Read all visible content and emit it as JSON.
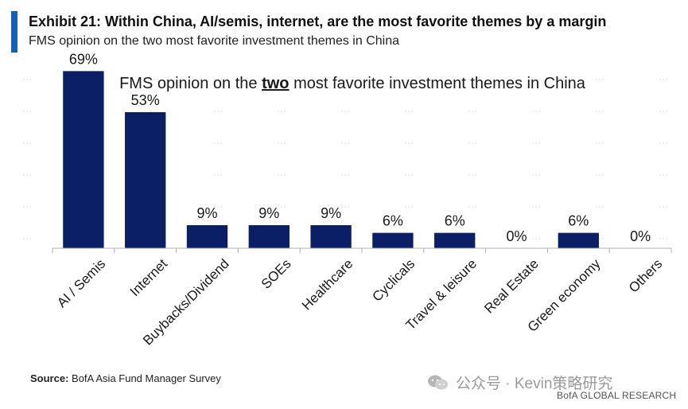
{
  "header": {
    "exhibit_title": "Exhibit 21: Within China, AI/semis, internet, are the most favorite themes by a margin",
    "exhibit_subtitle": "FMS opinion on the two most favorite investment themes in China",
    "accent_color": "#1560bd"
  },
  "chart_data": {
    "type": "bar",
    "title_prefix": "FMS opinion on the ",
    "title_emphasis": "two",
    "title_suffix": " most favorite investment themes in China",
    "categories": [
      "AI / Semis",
      "Internet",
      "Buybacks/Dividend",
      "SOEs",
      "Healthcare",
      "Cyclicals",
      "Travel & leisure",
      "Real Estate",
      "Green economy",
      "Others"
    ],
    "values": [
      69,
      53,
      9,
      9,
      9,
      6,
      6,
      0,
      6,
      0
    ],
    "data_labels": [
      "69%",
      "53%",
      "9%",
      "9%",
      "9%",
      "6%",
      "6%",
      "0%",
      "6%",
      "0%"
    ],
    "ylim": [
      0,
      75
    ],
    "bar_color": "#0b1f66",
    "xlabel": "",
    "ylabel": ""
  },
  "footer": {
    "source_label": "Source:",
    "source_text": " BofA Asia Fund Manager Survey",
    "watermark_text": "公众号 · Kevin策略研究",
    "brand": "BofA GLOBAL RESEARCH"
  }
}
